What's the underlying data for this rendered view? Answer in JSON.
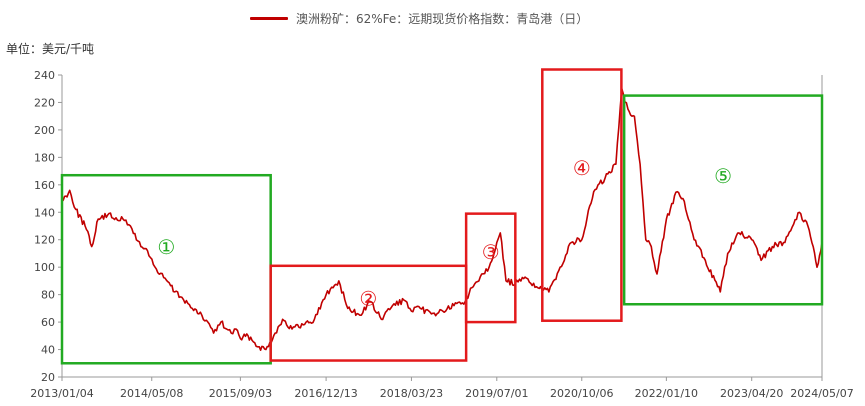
{
  "legend": {
    "series_label": "澳洲粉矿：62%Fe：远期现货价格指数：青岛港（日）",
    "color": "#c00000"
  },
  "unit_label": "单位：美元/千吨",
  "chart_data": {
    "type": "line",
    "title": "",
    "xlabel": "",
    "ylabel": "单位：美元/千吨",
    "ylim": [
      20,
      240
    ],
    "yticks": [
      20,
      40,
      60,
      80,
      100,
      120,
      140,
      160,
      180,
      200,
      220,
      240
    ],
    "xticks": [
      "2013/01/04",
      "2014/05/08",
      "2015/09/03",
      "2016/12/13",
      "2018/03/23",
      "2019/07/01",
      "2020/10/06",
      "2022/01/10",
      "2023/04/20",
      "2024/05/07"
    ],
    "grid": false,
    "legend_position": "top",
    "series": [
      {
        "name": "澳洲粉矿：62%Fe：远期现货价格指数：青岛港（日）",
        "color": "#c00000",
        "x": [
          "2013/01/04",
          "2013/02/15",
          "2013/03/20",
          "2013/05/10",
          "2013/06/15",
          "2013/07/20",
          "2013/09/10",
          "2013/10/25",
          "2013/12/10",
          "2014/01/20",
          "2014/03/10",
          "2014/04/15",
          "2014/06/10",
          "2014/07/20",
          "2014/09/10",
          "2014/10/20",
          "2014/12/15",
          "2015/01/20",
          "2015/03/10",
          "2015/04/10",
          "2015/05/20",
          "2015/06/20",
          "2015/07/15",
          "2015/08/10",
          "2015/09/03",
          "2015/10/15",
          "2015/11/20",
          "2015/12/15",
          "2016/01/20",
          "2016/03/10",
          "2016/04/20",
          "2016/06/10",
          "2016/08/10",
          "2016/10/10",
          "2016/12/13",
          "2017/02/20",
          "2017/04/10",
          "2017/06/15",
          "2017/08/10",
          "2017/10/10",
          "2017/12/10",
          "2018/02/10",
          "2018/03/23",
          "2018/05/10",
          "2018/07/10",
          "2018/09/10",
          "2018/11/10",
          "2019/01/10",
          "2019/02/15",
          "2019/04/10",
          "2019/05/20",
          "2019/07/01",
          "2019/07/20",
          "2019/08/20",
          "2019/10/10",
          "2019/12/10",
          "2020/02/10",
          "2020/04/10",
          "2020/06/10",
          "2020/08/10",
          "2020/10/06",
          "2020/12/10",
          "2021/02/10",
          "2021/04/10",
          "2021/05/12",
          "2021/06/15",
          "2021/07/20",
          "2021/08/20",
          "2021/09/20",
          "2021/10/20",
          "2021/11/20",
          "2022/01/10",
          "2022/03/10",
          "2022/04/10",
          "2022/06/10",
          "2022/08/10",
          "2022/10/31",
          "2022/12/10",
          "2023/02/10",
          "2023/04/20",
          "2023/06/10",
          "2023/08/10",
          "2023/10/10",
          "2024/01/05",
          "2024/02/20",
          "2024/03/20",
          "2024/04/10",
          "2024/05/07"
        ],
        "values": [
          148,
          156,
          142,
          130,
          115,
          135,
          138,
          136,
          134,
          128,
          115,
          112,
          96,
          92,
          82,
          78,
          70,
          66,
          60,
          52,
          60,
          55,
          52,
          55,
          48,
          50,
          45,
          42,
          40,
          52,
          62,
          55,
          58,
          62,
          80,
          90,
          70,
          65,
          75,
          62,
          72,
          76,
          68,
          70,
          66,
          68,
          72,
          75,
          85,
          95,
          100,
          118,
          125,
          90,
          88,
          92,
          85,
          82,
          100,
          118,
          120,
          155,
          165,
          175,
          230,
          215,
          210,
          175,
          120,
          115,
          95,
          135,
          155,
          150,
          120,
          105,
          82,
          110,
          125,
          120,
          105,
          115,
          118,
          140,
          130,
          115,
          100,
          118
        ]
      }
    ],
    "annotations": [
      {
        "label": "①",
        "color": "#22aa22",
        "x_start": "2013/01/04",
        "x_end": "2016/02/15",
        "y_low": 30,
        "y_high": 167
      },
      {
        "label": "②",
        "color": "#e31a1c",
        "x_start": "2016/02/15",
        "x_end": "2019/01/15",
        "y_low": 32,
        "y_high": 101
      },
      {
        "label": "③",
        "color": "#e31a1c",
        "x_start": "2019/01/15",
        "x_end": "2019/10/10",
        "y_low": 60,
        "y_high": 139
      },
      {
        "label": "④",
        "color": "#e31a1c",
        "x_start": "2020/03/05",
        "x_end": "2021/05/10",
        "y_low": 61,
        "y_high": 244
      },
      {
        "label": "⑤",
        "color": "#22aa22",
        "x_start": "2021/05/25",
        "x_end": "2024/05/07",
        "y_low": 73,
        "y_high": 225
      }
    ]
  }
}
